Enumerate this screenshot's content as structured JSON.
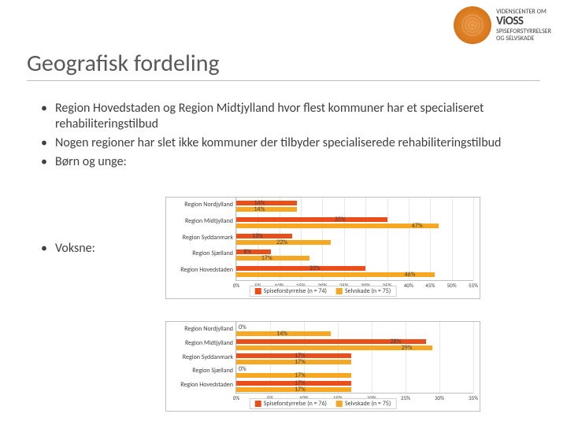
{
  "logo": {
    "brand": "ViOSS",
    "line1": "VIDENSCENTER OM",
    "line2": "SPISEFORSTYRRELSER",
    "line3": "OG SELVSKADE"
  },
  "title": "Geografisk fordeling",
  "bullets": [
    "Region Hovedstaden og Region Midtjylland hvor flest kommuner har et specialiseret rehabiliteringstilbud",
    "Nogen regioner har slet ikke kommuner der tilbyder specialiserede rehabiliteringstilbud",
    "Børn og unge:",
    "Voksne:"
  ],
  "colors": {
    "seriesA": "#e94e1b",
    "seriesB": "#f7a823",
    "grid": "#e8e8e8",
    "axis": "#c0c0c0",
    "text": "#404040"
  },
  "chart1": {
    "type": "bar",
    "orientation": "horizontal",
    "xlim": [
      0,
      55
    ],
    "xticks": [
      0,
      5,
      10,
      15,
      20,
      25,
      30,
      35,
      40,
      45,
      50,
      55
    ],
    "xticklabels": [
      "0%",
      "5%",
      "10%",
      "15%",
      "20%",
      "25%",
      "30%",
      "35%",
      "40%",
      "45%",
      "50%",
      "55%"
    ],
    "categories": [
      "Region Nordjylland",
      "Region Midtjylland",
      "Region Syddanmark",
      "Region Sjælland",
      "Region Hovedstaden"
    ],
    "seriesA": {
      "name": "Spiseforstyrrelse (n = 74)",
      "values": [
        14,
        35,
        13,
        8,
        30
      ],
      "labels": [
        "14%",
        "35%",
        "13%",
        "8%",
        "30%"
      ]
    },
    "seriesB": {
      "name": "Selvskade (n = 75)",
      "values": [
        14,
        47,
        22,
        17,
        46
      ],
      "labels": [
        "14%",
        "47%",
        "22%",
        "17%",
        "46%"
      ]
    }
  },
  "chart2": {
    "type": "bar",
    "orientation": "horizontal",
    "xlim": [
      0,
      35
    ],
    "xticks": [
      0,
      5,
      10,
      15,
      20,
      25,
      30,
      35
    ],
    "xticklabels": [
      "0%",
      "5%",
      "10%",
      "15%",
      "20%",
      "25%",
      "30%",
      "35%"
    ],
    "categories": [
      "Region Nordjylland",
      "Region Midtjylland",
      "Region Syddanmark",
      "Region Sjælland",
      "Region Hovedstaden"
    ],
    "seriesA": {
      "name": "Spiseforstyrrelse (n = 76)",
      "values": [
        0,
        28,
        17,
        0,
        17
      ],
      "labels": [
        "0%",
        "28%",
        "17%",
        "0%",
        "17%"
      ]
    },
    "seriesB": {
      "name": "Selvskade (n = 75)",
      "values": [
        14,
        29,
        17,
        17,
        17
      ],
      "labels": [
        "14%",
        "29%",
        "17%",
        "17%",
        "17%"
      ]
    }
  }
}
